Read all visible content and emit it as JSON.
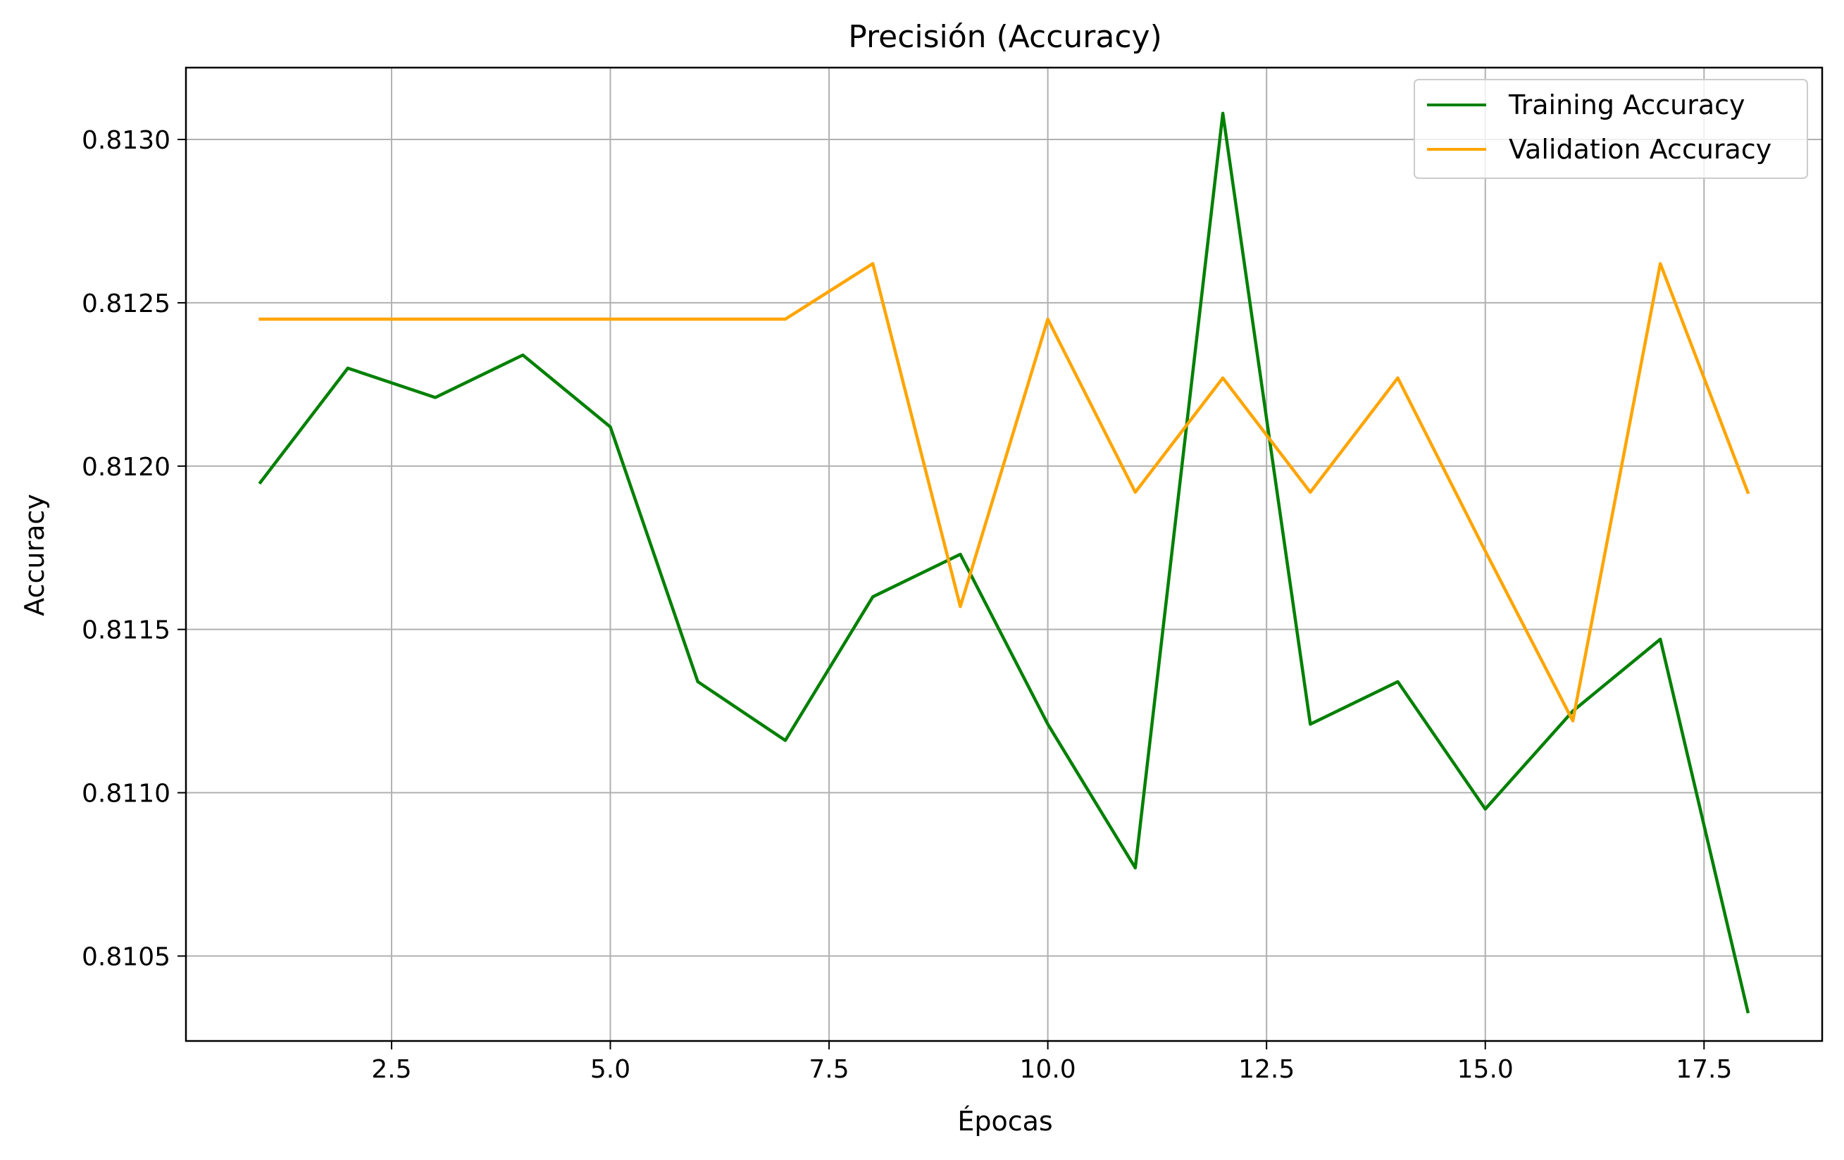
{
  "chart_data": {
    "type": "line",
    "title": "Precisión (Accuracy)",
    "xlabel": "Épocas",
    "ylabel": "Accuracy",
    "xlim": [
      0.15,
      18.85
    ],
    "ylim": [
      0.81024,
      0.81322
    ],
    "xticks": [
      2.5,
      5.0,
      7.5,
      10.0,
      12.5,
      15.0,
      17.5
    ],
    "xtick_labels": [
      "2.5",
      "5.0",
      "7.5",
      "10.0",
      "12.5",
      "15.0",
      "17.5"
    ],
    "yticks": [
      0.8105,
      0.811,
      0.8115,
      0.812,
      0.8125,
      0.813
    ],
    "ytick_labels": [
      "0.8105",
      "0.8110",
      "0.8115",
      "0.8120",
      "0.8125",
      "0.8130"
    ],
    "grid": true,
    "legend_position": "top-right",
    "x": [
      1,
      2,
      3,
      4,
      5,
      6,
      7,
      8,
      9,
      10,
      11,
      12,
      13,
      14,
      15,
      16,
      17,
      18
    ],
    "series": [
      {
        "name": "Training Accuracy",
        "color": "#008000",
        "values": [
          0.81195,
          0.8123,
          0.81221,
          0.81234,
          0.81212,
          0.81134,
          0.81116,
          0.8116,
          0.81173,
          0.81121,
          0.81077,
          0.81308,
          0.81121,
          0.81134,
          0.81095,
          0.81125,
          0.81147,
          0.81033
        ]
      },
      {
        "name": "Validation Accuracy",
        "color": "#FFA500",
        "values": [
          0.81245,
          0.81245,
          0.81245,
          0.81245,
          0.81245,
          0.81245,
          0.81245,
          0.81262,
          0.81157,
          0.81245,
          0.81192,
          0.81227,
          0.81192,
          0.81227,
          0.81174,
          0.81122,
          0.81262,
          0.81192
        ]
      }
    ]
  }
}
